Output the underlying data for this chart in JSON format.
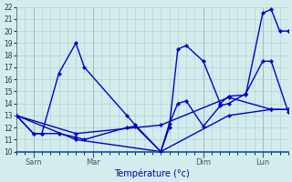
{
  "xlabel": "Température (°c)",
  "bg_color": "#d4eced",
  "grid_color": "#a8cccc",
  "line_color": "#0000cc",
  "marker_color": "#0000cc",
  "ylim": [
    10,
    22
  ],
  "yticks": [
    10,
    11,
    12,
    13,
    14,
    15,
    16,
    17,
    18,
    19,
    20,
    21,
    22
  ],
  "xlim": [
    0,
    32
  ],
  "day_ticks": [
    2,
    9,
    22,
    29
  ],
  "day_labels": [
    "Sam",
    "Mar",
    "Dim",
    "Lun"
  ],
  "series1_x": [
    0,
    2,
    3,
    5,
    7,
    8,
    13,
    14,
    17,
    18,
    19,
    20,
    22,
    24,
    25,
    27,
    29,
    30,
    31,
    32
  ],
  "series1_y": [
    13,
    11.5,
    11.5,
    16.5,
    19,
    17,
    13,
    12.2,
    10,
    12,
    18.5,
    18.8,
    17.5,
    14,
    14.6,
    14.7,
    21.5,
    21.8,
    20,
    20
  ],
  "series2_x": [
    0,
    2,
    3,
    5,
    7,
    8,
    13,
    14,
    17,
    18,
    19,
    20,
    22,
    24,
    25,
    27,
    29,
    30,
    32
  ],
  "series2_y": [
    13,
    11.5,
    11.5,
    11.5,
    11.2,
    11.0,
    12.0,
    12.1,
    10,
    12.3,
    14.0,
    14.2,
    12.1,
    13.8,
    14.0,
    14.8,
    17.5,
    17.5,
    13.3
  ],
  "series3_x": [
    0,
    7,
    17,
    25,
    30,
    32
  ],
  "series3_y": [
    13,
    11.0,
    10.0,
    13.0,
    13.5,
    13.5
  ],
  "series4_x": [
    0,
    7,
    17,
    25,
    30,
    32
  ],
  "series4_y": [
    13,
    11.5,
    12.2,
    14.5,
    13.5,
    13.5
  ]
}
